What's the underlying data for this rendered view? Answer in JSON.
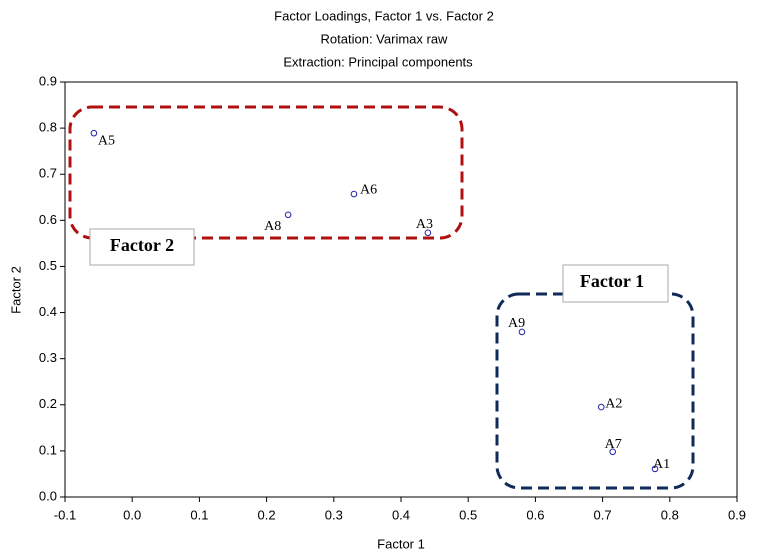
{
  "chart_data": {
    "type": "scatter",
    "title": "Factor Loadings, Factor 1 vs. Factor 2",
    "subtitle": [
      "Rotation: Varimax raw",
      "Extraction: Principal components"
    ],
    "xlabel": "Factor 1",
    "ylabel": "Factor 2",
    "xlim": [
      -0.1,
      0.9
    ],
    "xticks": [
      -0.1,
      {
        "value": 0,
        "label": "0.0"
      },
      0.1,
      0.2,
      0.3,
      0.4,
      0.5,
      0.6,
      0.7,
      0.8,
      0.9
    ],
    "ylim": [
      0,
      0.9
    ],
    "yticks": [
      {
        "value": 0,
        "label": "0.0"
      },
      0.1,
      0.2,
      0.3,
      0.4,
      0.5,
      0.6,
      0.7,
      0.8,
      0.9
    ],
    "labels": [
      "A5",
      "A6",
      "A8",
      "A3",
      "A9",
      "A2",
      "A7",
      "A1"
    ],
    "x": [
      -0.057,
      0.33,
      0.232,
      0.44,
      0.58,
      0.698,
      0.715,
      0.778
    ],
    "y": [
      0.789,
      0.657,
      0.612,
      0.573,
      0.358,
      0.195,
      0.098,
      0.061
    ],
    "color": "#2020b0",
    "annotations": [
      {
        "text": "Factor 2",
        "color": "#b01010"
      },
      {
        "text": "Factor 1",
        "color": "#102a5a"
      }
    ]
  }
}
